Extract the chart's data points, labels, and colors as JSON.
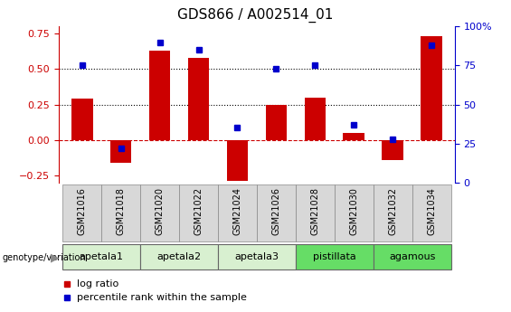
{
  "title": "GDS866 / A002514_01",
  "samples": [
    "GSM21016",
    "GSM21018",
    "GSM21020",
    "GSM21022",
    "GSM21024",
    "GSM21026",
    "GSM21028",
    "GSM21030",
    "GSM21032",
    "GSM21034"
  ],
  "log_ratio": [
    0.29,
    -0.16,
    0.63,
    0.58,
    -0.29,
    0.25,
    0.3,
    0.05,
    -0.14,
    0.73
  ],
  "percentile_rank": [
    75,
    22,
    90,
    85,
    35,
    73,
    75,
    37,
    28,
    88
  ],
  "genotype_groups": [
    {
      "label": "apetala1",
      "indices": [
        0,
        1
      ],
      "color": "#d8f0d0"
    },
    {
      "label": "apetala2",
      "indices": [
        2,
        3
      ],
      "color": "#d8f0d0"
    },
    {
      "label": "apetala3",
      "indices": [
        4,
        5
      ],
      "color": "#d8f0d0"
    },
    {
      "label": "pistillata",
      "indices": [
        6,
        7
      ],
      "color": "#66dd66"
    },
    {
      "label": "agamous",
      "indices": [
        8,
        9
      ],
      "color": "#66dd66"
    }
  ],
  "bar_color": "#cc0000",
  "dot_color": "#0000cc",
  "ylim_left": [
    -0.3,
    0.8
  ],
  "ylim_right": [
    0,
    100
  ],
  "yticks_left": [
    -0.25,
    0.0,
    0.25,
    0.5,
    0.75
  ],
  "yticks_right": [
    0,
    25,
    50,
    75,
    100
  ],
  "hlines": [
    0.25,
    0.5
  ],
  "zero_line_color": "#cc0000",
  "bar_width": 0.55,
  "dot_size": 5,
  "label_box_color": "#d8d8d8",
  "label_box_edge": "#888888"
}
